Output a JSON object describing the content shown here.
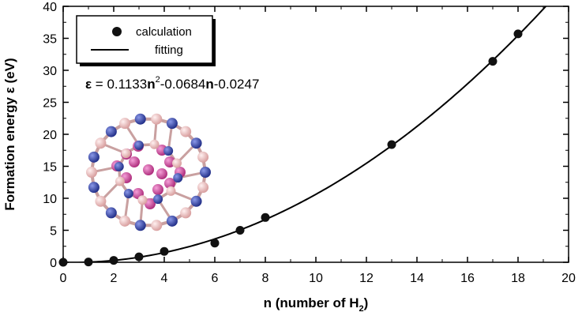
{
  "chart_data": {
    "type": "scatter",
    "xlabel": "n (number of H",
    "xlabel_sub": "2",
    "xlabel_close": ")",
    "ylabel": "Formation energy ε (eV)",
    "xlim": [
      0,
      20
    ],
    "ylim": [
      0,
      40
    ],
    "x_ticks": [
      0,
      2,
      4,
      6,
      8,
      10,
      12,
      14,
      16,
      18,
      20
    ],
    "y_ticks": [
      0,
      5,
      10,
      15,
      20,
      25,
      30,
      35,
      40
    ],
    "legend_position": "top-left",
    "series": [
      {
        "name": "calculation",
        "kind": "points",
        "x": [
          0,
          1,
          2,
          3,
          4,
          6,
          7,
          8,
          13,
          17,
          18
        ],
        "y": [
          0.0,
          0.05,
          0.3,
          0.85,
          1.7,
          3.0,
          5.0,
          7.0,
          18.4,
          31.4,
          35.7
        ]
      },
      {
        "name": "fitting",
        "kind": "line",
        "coefficients": [
          0.1133,
          -0.0684,
          -0.0247
        ]
      }
    ],
    "equation": {
      "symbol": "ε",
      "text_a": " = 0.1133",
      "n1": "n",
      "sup": "2",
      "text_b": "-0.0684",
      "n2": "n",
      "text_c": "-0.0247"
    }
  },
  "colors": {
    "boron": "#3d4fa8",
    "nitrogen": "#f2b8b8",
    "hydrogen": "#d04aa0"
  },
  "inset_icon": "bn-cage-molecule-icon"
}
